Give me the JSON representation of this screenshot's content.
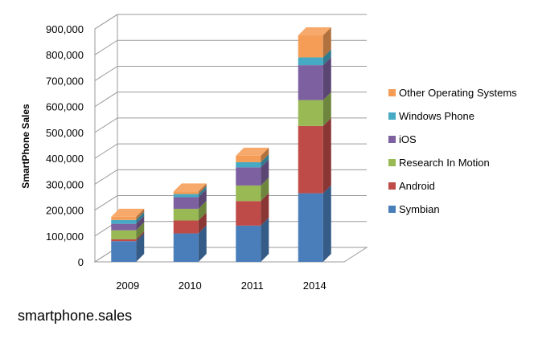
{
  "caption": "smartphone.sales",
  "chart_data": {
    "type": "bar",
    "stacked": true,
    "three_d": true,
    "title": "",
    "xlabel": "",
    "ylabel": "SmartPhone Sales",
    "ylim": [
      0,
      900000
    ],
    "y_ticks": [
      "0",
      "100,000",
      "200,000",
      "300,000",
      "400,000",
      "500,000",
      "600,000",
      "700,000",
      "800,000",
      "900,000"
    ],
    "categories": [
      "2009",
      "2010",
      "2011",
      "2014"
    ],
    "legend_position": "right",
    "grid": true,
    "series": [
      {
        "name": "Symbian",
        "color": "#4a7ebb",
        "values": [
          80000,
          110000,
          140000,
          265000
        ]
      },
      {
        "name": "Android",
        "color": "#be4b48",
        "values": [
          7000,
          50000,
          95000,
          260000
        ]
      },
      {
        "name": "Research In Motion",
        "color": "#98b954",
        "values": [
          35000,
          45000,
          60000,
          100000
        ]
      },
      {
        "name": "iOS",
        "color": "#7d60a0",
        "values": [
          25000,
          45000,
          70000,
          135000
        ]
      },
      {
        "name": "Windows Phone",
        "color": "#46aac5",
        "values": [
          15000,
          12000,
          20000,
          30000
        ]
      },
      {
        "name": "Other Operating Systems",
        "color": "#f59d56",
        "values": [
          12000,
          10000,
          25000,
          85000
        ]
      }
    ]
  }
}
